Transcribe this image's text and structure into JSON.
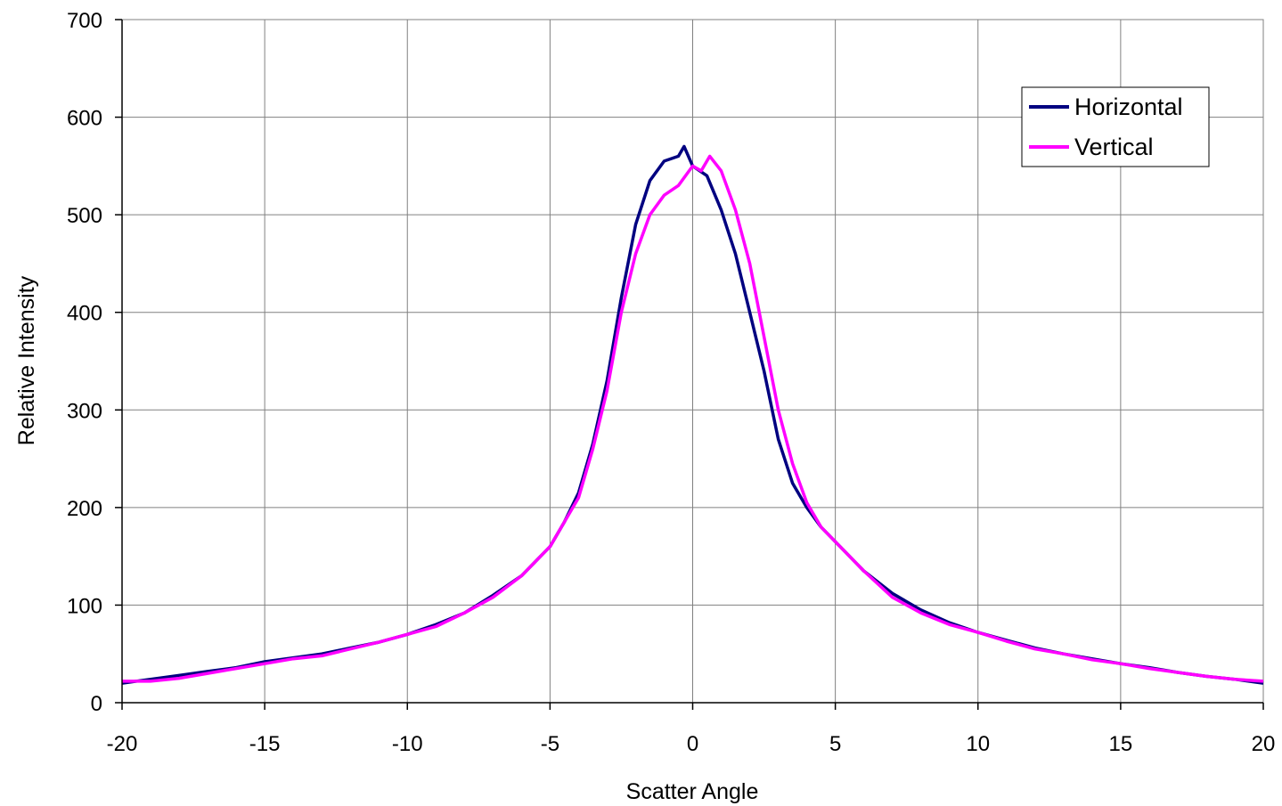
{
  "chart_data": {
    "type": "line",
    "title": "",
    "xlabel": "Scatter Angle",
    "ylabel": "Relative Intensity",
    "xlim": [
      -20,
      20
    ],
    "ylim": [
      0,
      700
    ],
    "x_ticks": [
      -20,
      -15,
      -10,
      -5,
      0,
      5,
      10,
      15,
      20
    ],
    "y_ticks": [
      0,
      100,
      200,
      300,
      400,
      500,
      600,
      700
    ],
    "grid": true,
    "legend_position": "top-right",
    "series": [
      {
        "name": "Horizontal",
        "color": "#000080",
        "x": [
          -20,
          -19,
          -18,
          -17,
          -16,
          -15,
          -14,
          -13,
          -12,
          -11,
          -10,
          -9,
          -8,
          -7,
          -6,
          -5,
          -4.5,
          -4,
          -3.5,
          -3,
          -2.5,
          -2,
          -1.5,
          -1,
          -0.5,
          -0.3,
          0,
          0.5,
          1,
          1.5,
          2,
          2.5,
          3,
          3.5,
          4,
          4.5,
          5,
          6,
          7,
          8,
          9,
          10,
          11,
          12,
          13,
          14,
          15,
          16,
          17,
          18,
          19,
          20
        ],
        "y": [
          20,
          24,
          28,
          32,
          36,
          42,
          46,
          50,
          56,
          62,
          70,
          80,
          92,
          110,
          130,
          160,
          185,
          215,
          265,
          330,
          415,
          490,
          535,
          555,
          560,
          570,
          550,
          540,
          505,
          460,
          400,
          340,
          270,
          225,
          200,
          180,
          165,
          135,
          112,
          95,
          82,
          72,
          64,
          56,
          50,
          45,
          40,
          36,
          31,
          27,
          24,
          20
        ]
      },
      {
        "name": "Vertical",
        "color": "#ff00ff",
        "x": [
          -20,
          -19,
          -18,
          -17,
          -16,
          -15,
          -14,
          -13,
          -12,
          -11,
          -10,
          -9,
          -8,
          -7,
          -6,
          -5,
          -4.5,
          -4,
          -3.5,
          -3,
          -2.5,
          -2,
          -1.5,
          -1,
          -0.5,
          0,
          0.3,
          0.6,
          1,
          1.5,
          2,
          2.5,
          3,
          3.5,
          4,
          4.5,
          5,
          6,
          7,
          8,
          9,
          10,
          11,
          12,
          13,
          14,
          15,
          16,
          17,
          18,
          19,
          20
        ],
        "y": [
          22,
          22,
          25,
          30,
          35,
          40,
          45,
          48,
          55,
          62,
          70,
          78,
          92,
          108,
          130,
          160,
          185,
          210,
          260,
          320,
          400,
          460,
          500,
          520,
          530,
          550,
          545,
          560,
          545,
          505,
          450,
          375,
          300,
          245,
          205,
          180,
          165,
          135,
          108,
          92,
          80,
          72,
          63,
          55,
          50,
          44,
          40,
          35,
          31,
          27,
          24,
          22
        ]
      }
    ]
  }
}
